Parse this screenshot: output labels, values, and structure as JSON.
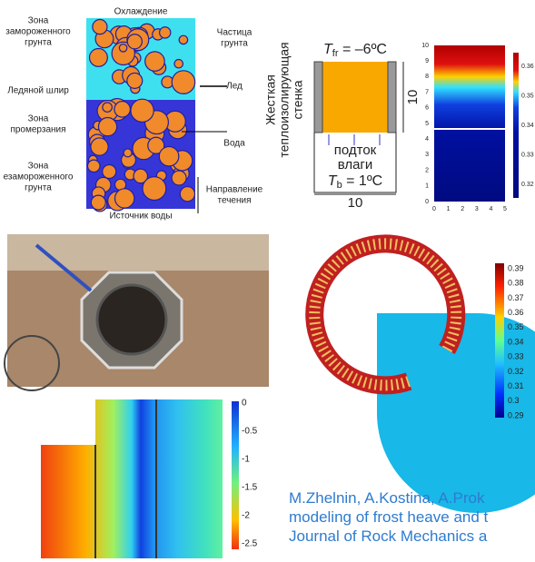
{
  "figure_a": {
    "top": "Охлаждение",
    "bottom": "Источник воды",
    "left_labels": [
      [
        "Зона",
        "замороженного",
        "грунта"
      ],
      [
        "Ледяной шлир"
      ],
      [
        "Зона",
        "промерзания"
      ],
      [
        "Зона",
        "езамороженного",
        "грунта"
      ]
    ],
    "right_labels": [
      [
        "Частица",
        "грунта"
      ],
      [
        "Лед"
      ],
      [
        "Вода"
      ],
      [
        "Направление",
        "течения"
      ]
    ]
  },
  "figure_b": {
    "wall": [
      "Жесткая",
      "теплоизолирующая",
      "стенка"
    ],
    "top_T": "T",
    "top_sub": "fr",
    "top_rest": " = –6ºC",
    "inflow": [
      "подток",
      "влаги"
    ],
    "bottom_T": "T",
    "bottom_sub": "b",
    "bottom_rest": " = 1ºC",
    "width": "10",
    "height": "10"
  },
  "figure_c": {
    "yticks": [
      0,
      1,
      2,
      3,
      4,
      5,
      6,
      7,
      8,
      9,
      10
    ],
    "xticks": [
      0,
      1,
      2,
      3,
      4,
      5
    ],
    "colorbar_ticks": [
      {
        "value": 0.36,
        "label": "0.36"
      },
      {
        "value": 0.35,
        "label": "0.35"
      },
      {
        "value": 0.34,
        "label": "0.34"
      },
      {
        "value": 0.33,
        "label": "0.33"
      },
      {
        "value": 0.32,
        "label": "0.32"
      }
    ]
  },
  "figure_e": {
    "colorbar_ticks": [
      0.39,
      0.38,
      0.37,
      0.36,
      0.35,
      0.34,
      0.33,
      0.32,
      0.31,
      0.3,
      0.29
    ]
  },
  "figure_f": {
    "colorbar_ticks": [
      0,
      -0.5,
      -1,
      -1.5,
      -2,
      -2.5
    ]
  },
  "citation": [
    "M.Zhelnin, A.Kostina, A.Prok",
    "modeling of frost heave and t",
    "Journal of Rock Mechanics a"
  ]
}
